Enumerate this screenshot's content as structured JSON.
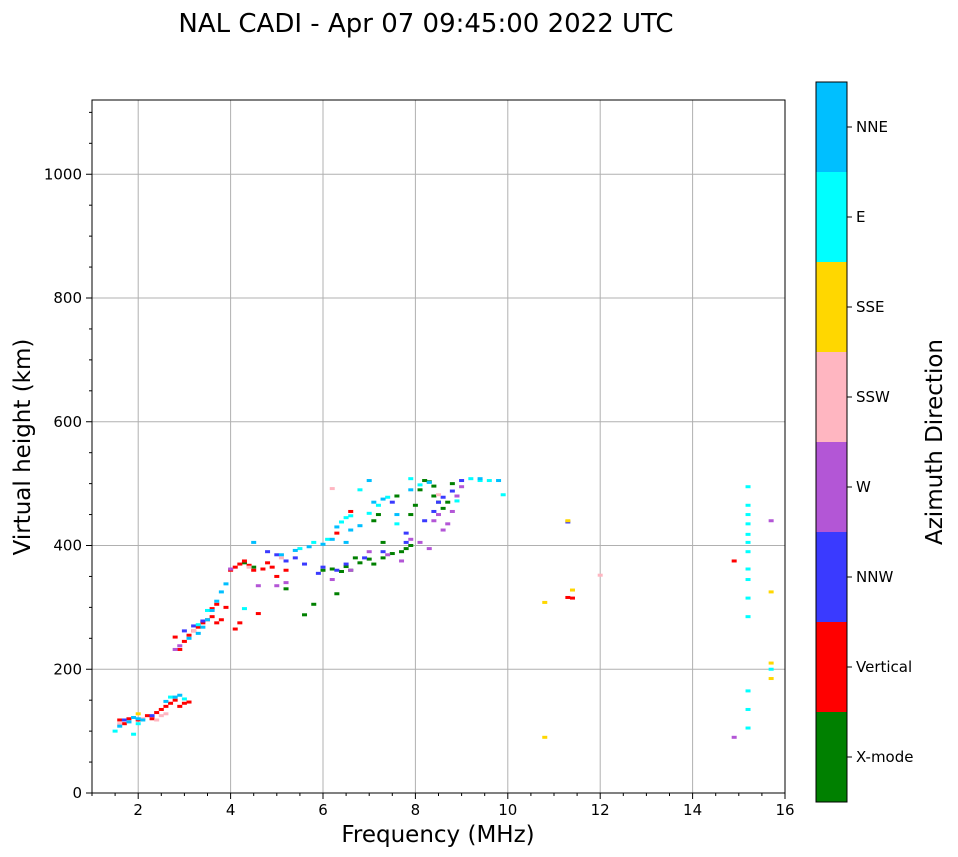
{
  "chart_data": {
    "type": "scatter",
    "title": "NAL CADI - Apr 07 09:45:00 2022 UTC",
    "xlabel": "Frequency (MHz)",
    "ylabel": "Virtual height (km)",
    "xlim": [
      1,
      16
    ],
    "ylim": [
      0,
      1120
    ],
    "xticks": [
      2,
      4,
      6,
      8,
      10,
      12,
      14,
      16
    ],
    "yticks": [
      0,
      200,
      400,
      600,
      800,
      1000
    ],
    "grid": true,
    "colorbar": {
      "label": "Azimuth Direction",
      "categories": [
        {
          "name": "X-mode",
          "color": "#008000"
        },
        {
          "name": "Vertical",
          "color": "#ff0000"
        },
        {
          "name": "NNW",
          "color": "#3a3aff"
        },
        {
          "name": "W",
          "color": "#b356d6"
        },
        {
          "name": "SSW",
          "color": "#ffb6c1"
        },
        {
          "name": "SSE",
          "color": "#ffd700"
        },
        {
          "name": "E",
          "color": "#00ffff"
        },
        {
          "name": "NNE",
          "color": "#00bfff"
        }
      ]
    },
    "series": [
      {
        "name": "X-mode",
        "points": [
          [
            4.3,
            372
          ],
          [
            4.5,
            365
          ],
          [
            5.2,
            330
          ],
          [
            5.6,
            288
          ],
          [
            5.8,
            305
          ],
          [
            6.0,
            360
          ],
          [
            6.2,
            362
          ],
          [
            6.3,
            322
          ],
          [
            6.4,
            358
          ],
          [
            6.5,
            366
          ],
          [
            6.6,
            360
          ],
          [
            6.7,
            380
          ],
          [
            6.8,
            372
          ],
          [
            7.0,
            378
          ],
          [
            7.1,
            440
          ],
          [
            7.1,
            370
          ],
          [
            7.2,
            450
          ],
          [
            7.3,
            380
          ],
          [
            7.3,
            405
          ],
          [
            7.5,
            387
          ],
          [
            7.6,
            480
          ],
          [
            7.7,
            390
          ],
          [
            7.8,
            395
          ],
          [
            7.9,
            400
          ],
          [
            7.9,
            450
          ],
          [
            8.0,
            465
          ],
          [
            8.1,
            490
          ],
          [
            8.2,
            505
          ],
          [
            8.3,
            503
          ],
          [
            8.4,
            496
          ],
          [
            8.4,
            480
          ],
          [
            8.5,
            470
          ],
          [
            8.6,
            460
          ],
          [
            8.7,
            470
          ],
          [
            8.8,
            500
          ]
        ]
      },
      {
        "name": "Vertical",
        "points": [
          [
            1.6,
            118
          ],
          [
            1.7,
            112
          ],
          [
            1.8,
            120
          ],
          [
            2.0,
            118
          ],
          [
            2.2,
            125
          ],
          [
            2.3,
            120
          ],
          [
            2.4,
            130
          ],
          [
            2.5,
            135
          ],
          [
            2.6,
            140
          ],
          [
            2.7,
            145
          ],
          [
            2.8,
            150
          ],
          [
            2.9,
            140
          ],
          [
            3.0,
            145
          ],
          [
            3.1,
            147
          ],
          [
            2.8,
            252
          ],
          [
            2.9,
            232
          ],
          [
            3.0,
            245
          ],
          [
            3.1,
            255
          ],
          [
            3.2,
            262
          ],
          [
            3.3,
            268
          ],
          [
            3.4,
            275
          ],
          [
            3.5,
            280
          ],
          [
            3.6,
            285
          ],
          [
            3.7,
            275
          ],
          [
            3.8,
            280
          ],
          [
            3.9,
            300
          ],
          [
            4.0,
            360
          ],
          [
            4.1,
            365
          ],
          [
            4.2,
            370
          ],
          [
            4.3,
            375
          ],
          [
            4.4,
            368
          ],
          [
            4.5,
            360
          ],
          [
            4.7,
            362
          ],
          [
            4.8,
            372
          ],
          [
            4.9,
            365
          ],
          [
            5.0,
            350
          ],
          [
            5.2,
            360
          ],
          [
            3.6,
            298
          ],
          [
            3.7,
            305
          ],
          [
            4.1,
            265
          ],
          [
            4.2,
            275
          ],
          [
            4.6,
            290
          ],
          [
            6.3,
            420
          ],
          [
            6.6,
            455
          ],
          [
            14.9,
            375
          ],
          [
            11.3,
            316
          ],
          [
            11.4,
            315
          ]
        ]
      },
      {
        "name": "NNW",
        "points": [
          [
            1.7,
            118
          ],
          [
            2.3,
            125
          ],
          [
            3.0,
            262
          ],
          [
            3.2,
            270
          ],
          [
            3.4,
            278
          ],
          [
            4.8,
            390
          ],
          [
            5.0,
            385
          ],
          [
            5.2,
            375
          ],
          [
            5.4,
            380
          ],
          [
            5.6,
            370
          ],
          [
            5.9,
            355
          ],
          [
            6.0,
            365
          ],
          [
            6.3,
            360
          ],
          [
            6.5,
            370
          ],
          [
            6.9,
            380
          ],
          [
            7.3,
            390
          ],
          [
            7.5,
            470
          ],
          [
            7.8,
            420
          ],
          [
            7.8,
            405
          ],
          [
            8.2,
            440
          ],
          [
            8.4,
            455
          ],
          [
            8.5,
            470
          ],
          [
            8.6,
            478
          ],
          [
            8.8,
            488
          ],
          [
            9.0,
            505
          ],
          [
            11.3,
            438
          ]
        ]
      },
      {
        "name": "W",
        "points": [
          [
            2.8,
            232
          ],
          [
            2.9,
            238
          ],
          [
            4.0,
            362
          ],
          [
            4.6,
            335
          ],
          [
            5.0,
            335
          ],
          [
            5.2,
            340
          ],
          [
            6.2,
            345
          ],
          [
            6.6,
            360
          ],
          [
            7.0,
            390
          ],
          [
            7.4,
            385
          ],
          [
            7.7,
            375
          ],
          [
            7.9,
            410
          ],
          [
            8.1,
            405
          ],
          [
            8.3,
            395
          ],
          [
            8.4,
            440
          ],
          [
            8.5,
            450
          ],
          [
            8.6,
            425
          ],
          [
            8.7,
            435
          ],
          [
            8.8,
            455
          ],
          [
            8.9,
            480
          ],
          [
            9.0,
            495
          ],
          [
            14.9,
            90
          ],
          [
            15.7,
            440
          ]
        ]
      },
      {
        "name": "SSW",
        "points": [
          [
            1.6,
            112
          ],
          [
            1.8,
            115
          ],
          [
            2.1,
            120
          ],
          [
            2.4,
            118
          ],
          [
            2.5,
            125
          ],
          [
            2.6,
            128
          ],
          [
            3.2,
            262
          ],
          [
            4.4,
            365
          ],
          [
            5.1,
            380
          ],
          [
            6.2,
            492
          ],
          [
            8.5,
            482
          ],
          [
            12.0,
            352
          ]
        ]
      },
      {
        "name": "SSE",
        "points": [
          [
            2.0,
            128
          ],
          [
            10.8,
            90
          ],
          [
            10.8,
            308
          ],
          [
            11.3,
            440
          ],
          [
            11.4,
            328
          ],
          [
            15.7,
            325
          ],
          [
            15.7,
            210
          ],
          [
            15.7,
            185
          ]
        ]
      },
      {
        "name": "E",
        "points": [
          [
            1.5,
            100
          ],
          [
            1.9,
            95
          ],
          [
            2.0,
            112
          ],
          [
            2.7,
            155
          ],
          [
            3.0,
            152
          ],
          [
            3.3,
            272
          ],
          [
            3.5,
            295
          ],
          [
            4.3,
            298
          ],
          [
            5.5,
            395
          ],
          [
            5.8,
            405
          ],
          [
            6.1,
            410
          ],
          [
            6.4,
            438
          ],
          [
            6.5,
            445
          ],
          [
            6.6,
            448
          ],
          [
            6.8,
            490
          ],
          [
            7.0,
            452
          ],
          [
            7.2,
            465
          ],
          [
            7.4,
            478
          ],
          [
            7.6,
            435
          ],
          [
            7.9,
            508
          ],
          [
            8.1,
            498
          ],
          [
            8.9,
            472
          ],
          [
            9.2,
            508
          ],
          [
            9.4,
            505
          ],
          [
            9.6,
            505
          ],
          [
            9.9,
            482
          ],
          [
            15.2,
            495
          ],
          [
            15.2,
            465
          ],
          [
            15.2,
            450
          ],
          [
            15.2,
            435
          ],
          [
            15.2,
            418
          ],
          [
            15.2,
            405
          ],
          [
            15.2,
            390
          ],
          [
            15.2,
            362
          ],
          [
            15.2,
            345
          ],
          [
            15.2,
            315
          ],
          [
            15.2,
            285
          ],
          [
            15.2,
            165
          ],
          [
            15.2,
            135
          ],
          [
            15.2,
            105
          ],
          [
            15.7,
            200
          ]
        ]
      },
      {
        "name": "NNE",
        "points": [
          [
            1.6,
            108
          ],
          [
            1.8,
            115
          ],
          [
            1.9,
            122
          ],
          [
            2.0,
            120
          ],
          [
            2.1,
            118
          ],
          [
            2.6,
            148
          ],
          [
            2.8,
            155
          ],
          [
            2.9,
            158
          ],
          [
            3.1,
            250
          ],
          [
            3.3,
            258
          ],
          [
            3.4,
            268
          ],
          [
            3.5,
            280
          ],
          [
            3.6,
            295
          ],
          [
            3.7,
            310
          ],
          [
            3.8,
            325
          ],
          [
            3.9,
            338
          ],
          [
            4.5,
            405
          ],
          [
            5.1,
            385
          ],
          [
            5.4,
            392
          ],
          [
            5.7,
            398
          ],
          [
            6.0,
            402
          ],
          [
            6.2,
            410
          ],
          [
            6.3,
            430
          ],
          [
            6.5,
            405
          ],
          [
            6.6,
            425
          ],
          [
            6.8,
            432
          ],
          [
            7.0,
            505
          ],
          [
            7.1,
            470
          ],
          [
            7.3,
            475
          ],
          [
            7.6,
            450
          ],
          [
            7.9,
            490
          ],
          [
            8.3,
            502
          ],
          [
            9.4,
            508
          ],
          [
            9.8,
            505
          ]
        ]
      }
    ]
  }
}
